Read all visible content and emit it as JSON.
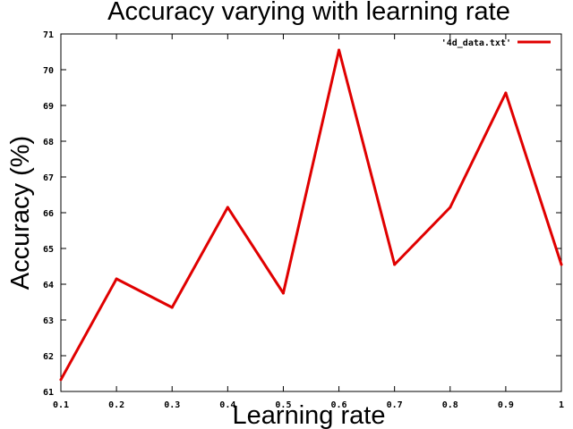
{
  "chart_data": {
    "type": "line",
    "title": "Accuracy varying with learning rate",
    "xlabel": "Learning rate",
    "ylabel": "Accuracy (%)",
    "xlim": [
      0.1,
      1
    ],
    "ylim": [
      61,
      71
    ],
    "x_ticks": [
      "0.1",
      "0.2",
      "0.3",
      "0.4",
      "0.5",
      "0.6",
      "0.7",
      "0.8",
      "0.9",
      "1"
    ],
    "x_tick_values": [
      0.1,
      0.2,
      0.3,
      0.4,
      0.5,
      0.6,
      0.7,
      0.8,
      0.9,
      1.0
    ],
    "y_ticks": [
      "61",
      "62",
      "63",
      "64",
      "65",
      "66",
      "67",
      "68",
      "69",
      "70",
      "71"
    ],
    "y_tick_values": [
      61,
      62,
      63,
      64,
      65,
      66,
      67,
      68,
      69,
      70,
      71
    ],
    "grid": false,
    "legend_position": "top-right",
    "series": [
      {
        "name": "'4d_data.txt'",
        "color": "#e00000",
        "x": [
          0.1,
          0.2,
          0.3,
          0.4,
          0.5,
          0.6,
          0.7,
          0.8,
          0.9,
          1.0
        ],
        "y": [
          61.33,
          64.15,
          63.35,
          66.15,
          63.75,
          70.55,
          64.55,
          66.15,
          69.35,
          64.55
        ]
      }
    ]
  }
}
